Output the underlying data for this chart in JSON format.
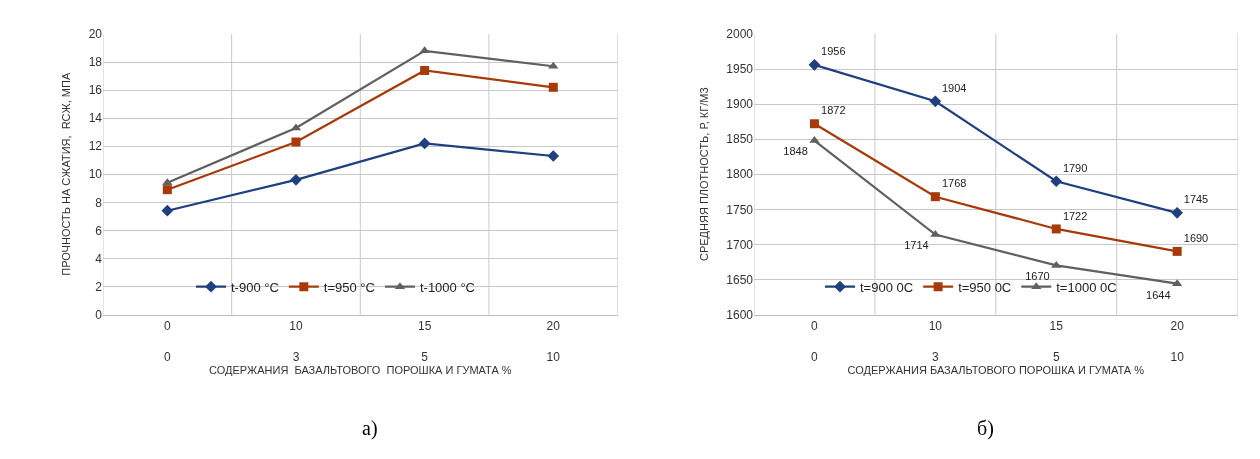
{
  "chart_data": [
    {
      "type": "line",
      "ylabel": "ПРОЧНОСТЬ НА СЖАТИЯ,  RСЖ, МПА",
      "xlabel": "СОДЕРЖАНИЯ  БАЗАЛЬТОВОГО  ПОРОШКА И ГУМАТА %",
      "annotations": [
        "а)"
      ],
      "categories": [
        "0\n0",
        "10\n3",
        "15\n5",
        "20\n10"
      ],
      "series": [
        {
          "name": "t-900 °C",
          "color": "#1f3f7f",
          "values": [
            7.4,
            9.6,
            12.2,
            11.3
          ],
          "marker": "diamond"
        },
        {
          "name": "t=950 °C",
          "color": "#a83a0a",
          "values": [
            8.9,
            12.3,
            17.4,
            16.2
          ],
          "marker": "square"
        },
        {
          "name": "t-1000 °C",
          "color": "#606060",
          "values": [
            9.4,
            13.3,
            18.8,
            17.7
          ],
          "marker": "triangle"
        }
      ],
      "ylim": [
        0,
        20
      ],
      "yticks": [
        0,
        2,
        4,
        6,
        8,
        10,
        12,
        14,
        16,
        18,
        20
      ],
      "grid": true,
      "legend": "bottom",
      "line_style": "solid"
    },
    {
      "type": "line",
      "ylabel": "СРЕДНЯЯ ПЛОТНОСТЬ, Р, КГ/М3",
      "xlabel": "СОДЕРЖАНИЯ БАЗАЛЬТОВОГО ПОРОШКА И ГУМАТА %",
      "annotations": [
        "б)"
      ],
      "categories": [
        "0\n0",
        "10\n3",
        "15\n5",
        "20\n10"
      ],
      "series": [
        {
          "name": "t=900 0C",
          "color": "#1f3f7f",
          "values": [
            1956,
            1904,
            1790,
            1745
          ],
          "marker": "diamond"
        },
        {
          "name": "t=950 0C",
          "color": "#a83a0a",
          "values": [
            1872,
            1768,
            1722,
            1690
          ],
          "marker": "square"
        },
        {
          "name": "t=1000 0C",
          "color": "#606060",
          "values": [
            1848,
            1714,
            1670,
            1644
          ],
          "marker": "triangle"
        }
      ],
      "ylim": [
        1600,
        2000
      ],
      "yticks": [
        1600,
        1650,
        1700,
        1750,
        1800,
        1850,
        1900,
        1950,
        2000
      ],
      "grid": true,
      "legend": "bottom",
      "line_style": "solid",
      "data_labels": true
    }
  ]
}
